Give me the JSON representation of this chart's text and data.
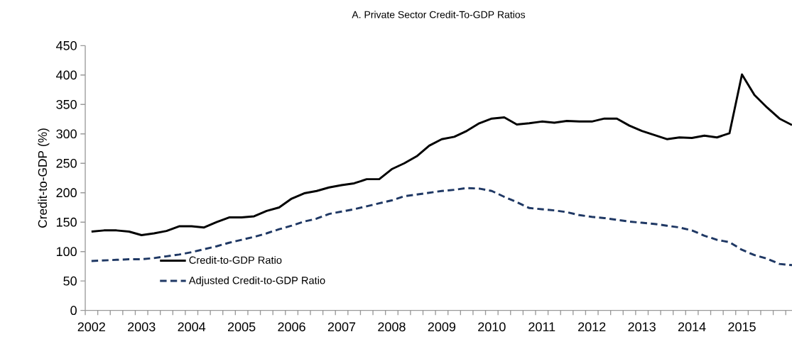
{
  "chart_data": {
    "type": "line",
    "title": "A. Private Sector Credit-To-GDP Ratios",
    "ylabel": "Credit-to-GDP (%)",
    "categories": [
      "2002",
      null,
      null,
      null,
      "2003",
      null,
      null,
      null,
      "2004",
      null,
      null,
      null,
      "2005",
      null,
      null,
      null,
      "2006",
      null,
      null,
      null,
      "2007",
      null,
      null,
      null,
      "2008",
      null,
      null,
      null,
      "2009",
      null,
      null,
      null,
      "2010",
      null,
      null,
      null,
      "2011",
      null,
      null,
      null,
      "2012",
      null,
      null,
      null,
      "2013",
      null,
      null,
      null,
      "2014",
      null,
      null,
      null,
      "2015",
      null,
      null,
      null,
      null
    ],
    "ylim": [
      0,
      450
    ],
    "yticks": [
      0,
      50,
      100,
      150,
      200,
      250,
      300,
      350,
      400,
      450
    ],
    "legend": "bottom left",
    "series": [
      {
        "name": "Credit-to-GDP Ratio",
        "color": "#000000",
        "line_style": "solid",
        "values": [
          134,
          136,
          136,
          134,
          128,
          131,
          135,
          143,
          143,
          141,
          150,
          158,
          158,
          160,
          169,
          175,
          190,
          199,
          203,
          209,
          213,
          216,
          223,
          223,
          240,
          250,
          262,
          280,
          291,
          295,
          305,
          318,
          326,
          328,
          316,
          318,
          321,
          319,
          322,
          321,
          321,
          326,
          326,
          314,
          305,
          298,
          291,
          294,
          293,
          297,
          294,
          301,
          401,
          366,
          345,
          326,
          315
        ]
      },
      {
        "name": "Adjusted Credit-to-GDP Ratio",
        "color": "#1f3864",
        "line_style": "dashed",
        "values": [
          84,
          85,
          86,
          87,
          87,
          89,
          92,
          95,
          99,
          104,
          109,
          115,
          120,
          125,
          131,
          138,
          144,
          151,
          156,
          164,
          168,
          172,
          177,
          182,
          187,
          194,
          197,
          200,
          203,
          205,
          208,
          207,
          203,
          193,
          184,
          174,
          172,
          170,
          167,
          162,
          159,
          157,
          154,
          151,
          149,
          147,
          144,
          141,
          136,
          127,
          120,
          116,
          103,
          94,
          88,
          79,
          77
        ]
      }
    ]
  }
}
